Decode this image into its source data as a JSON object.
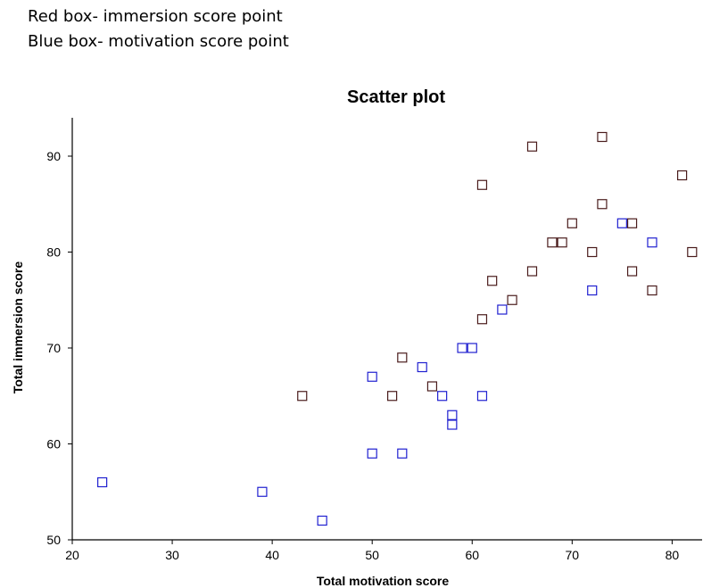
{
  "notes": {
    "line1": "Red box- immersion score point",
    "line2": "Blue box- motivation score point"
  },
  "chart_data": {
    "type": "scatter",
    "title": "Scatter plot",
    "xlabel": "Total motivation score",
    "ylabel": "Total immersion score",
    "xlim": [
      20,
      83
    ],
    "ylim": [
      50,
      94
    ],
    "xticks": [
      20,
      30,
      40,
      50,
      60,
      70,
      80
    ],
    "yticks": [
      50,
      60,
      70,
      80,
      90
    ],
    "grid": false,
    "series": [
      {
        "color": "#4a1c1c",
        "points": [
          [
            43,
            65
          ],
          [
            52,
            65
          ],
          [
            53,
            69
          ],
          [
            56,
            66
          ],
          [
            61,
            73
          ],
          [
            61,
            87
          ],
          [
            62,
            77
          ],
          [
            64,
            75
          ],
          [
            66,
            78
          ],
          [
            66,
            91
          ],
          [
            68,
            81
          ],
          [
            69,
            81
          ],
          [
            70,
            83
          ],
          [
            72,
            80
          ],
          [
            73,
            85
          ],
          [
            73,
            92
          ],
          [
            76,
            83
          ],
          [
            76,
            78
          ],
          [
            78,
            76
          ],
          [
            81,
            88
          ],
          [
            82,
            80
          ]
        ]
      },
      {
        "color": "#2020d0",
        "points": [
          [
            23,
            56
          ],
          [
            39,
            55
          ],
          [
            45,
            52
          ],
          [
            50,
            59
          ],
          [
            50,
            67
          ],
          [
            53,
            59
          ],
          [
            55,
            68
          ],
          [
            57,
            65
          ],
          [
            58,
            63
          ],
          [
            58,
            62
          ],
          [
            59,
            70
          ],
          [
            60,
            70
          ],
          [
            61,
            65
          ],
          [
            63,
            74
          ],
          [
            72,
            76
          ],
          [
            75,
            83
          ],
          [
            78,
            81
          ]
        ]
      }
    ]
  }
}
